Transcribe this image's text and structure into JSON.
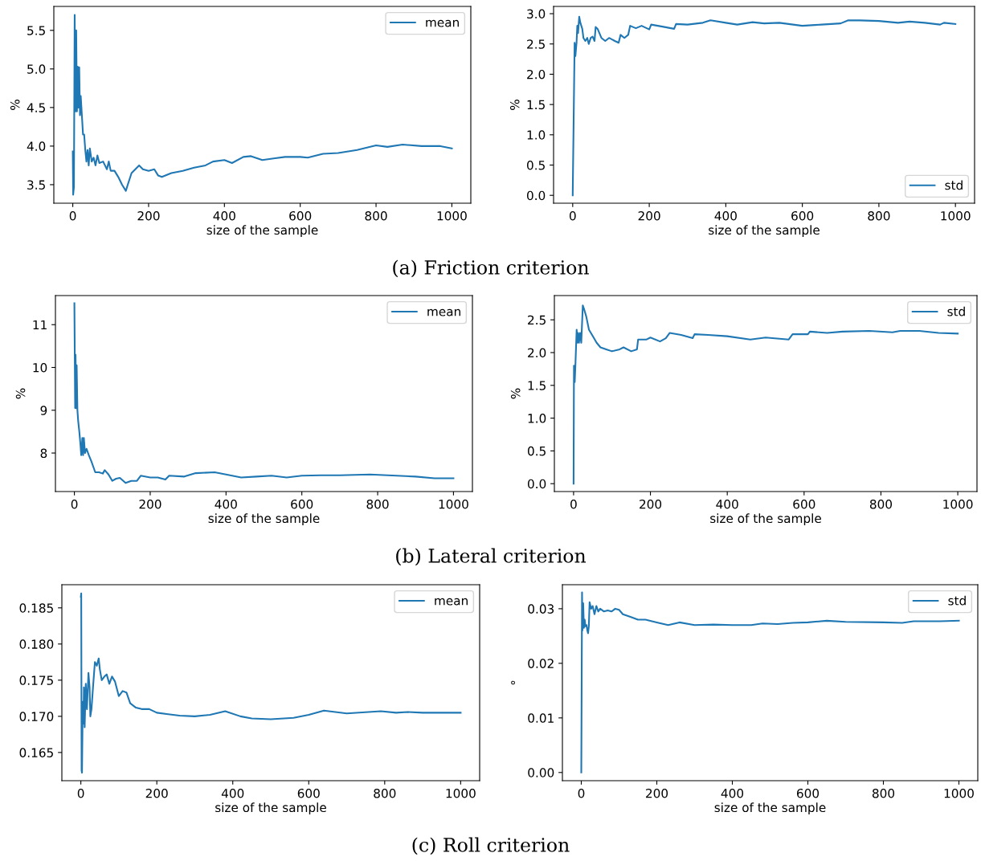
{
  "chart_data": [
    {
      "type": "line",
      "xlabel": "size of the sample",
      "ylabel": "%",
      "xlim": [
        -50,
        1050
      ],
      "xticks": [
        0,
        200,
        400,
        600,
        800,
        1000
      ],
      "ylim": [
        3.26,
        5.81
      ],
      "yticks": [
        3.5,
        {
          "value": 4,
          "label": "4.0"
        },
        4.5,
        {
          "value": 5,
          "label": "5.0"
        },
        5.5
      ],
      "legend": "top right",
      "grid": false,
      "annotations": [
        "(a) Friction criterion"
      ],
      "series": [
        {
          "name": "mean",
          "color": "#1f77b4",
          "x": [
            0,
            1,
            3,
            5,
            7,
            9,
            11,
            13,
            15,
            17,
            19,
            21,
            24,
            27,
            30,
            33,
            36,
            39,
            42,
            45,
            50,
            55,
            60,
            65,
            70,
            80,
            90,
            95,
            100,
            110,
            120,
            130,
            140,
            145,
            155,
            165,
            175,
            185,
            200,
            215,
            225,
            235,
            260,
            290,
            320,
            350,
            370,
            400,
            420,
            450,
            470,
            500,
            530,
            560,
            600,
            620,
            660,
            700,
            750,
            800,
            830,
            870,
            920,
            970,
            1000
          ],
          "values": [
            3.93,
            3.37,
            3.47,
            5.7,
            4.45,
            5.5,
            4.45,
            5.03,
            4.5,
            5.02,
            4.4,
            4.65,
            4.4,
            4.15,
            4.15,
            3.95,
            3.8,
            3.95,
            3.75,
            3.97,
            3.8,
            3.85,
            3.75,
            3.88,
            3.78,
            3.8,
            3.7,
            3.8,
            3.68,
            3.68,
            3.6,
            3.5,
            3.42,
            3.5,
            3.65,
            3.7,
            3.75,
            3.7,
            3.68,
            3.7,
            3.62,
            3.6,
            3.65,
            3.68,
            3.72,
            3.75,
            3.8,
            3.82,
            3.78,
            3.86,
            3.87,
            3.82,
            3.84,
            3.86,
            3.86,
            3.85,
            3.9,
            3.91,
            3.95,
            4.01,
            3.99,
            4.02,
            4.0,
            4.0,
            3.97
          ]
        }
      ]
    },
    {
      "type": "line",
      "xlabel": "size of the sample",
      "ylabel": "%",
      "xlim": [
        -50,
        1050
      ],
      "xticks": [
        0,
        200,
        400,
        600,
        800,
        1000
      ],
      "ylim": [
        -0.13,
        3.12
      ],
      "yticks": [
        {
          "value": 0,
          "label": "0.0"
        },
        0.5,
        {
          "value": 1,
          "label": "1.0"
        },
        1.5,
        {
          "value": 2,
          "label": "2.0"
        },
        2.5,
        {
          "value": 3,
          "label": "3.0"
        }
      ],
      "legend": "bottom right",
      "grid": false,
      "series": [
        {
          "name": "std",
          "color": "#1f77b4",
          "x": [
            0,
            5,
            7,
            10,
            12,
            14,
            17,
            20,
            25,
            28,
            33,
            38,
            42,
            47,
            52,
            57,
            60,
            65,
            75,
            85,
            95,
            110,
            120,
            125,
            135,
            145,
            150,
            165,
            180,
            200,
            205,
            240,
            265,
            270,
            300,
            340,
            360,
            400,
            430,
            470,
            500,
            540,
            600,
            650,
            700,
            720,
            750,
            800,
            850,
            880,
            920,
            960,
            970,
            1000
          ],
          "values": [
            0,
            2.52,
            2.3,
            2.52,
            2.8,
            2.68,
            2.95,
            2.85,
            2.75,
            2.6,
            2.55,
            2.6,
            2.5,
            2.6,
            2.62,
            2.55,
            2.78,
            2.75,
            2.6,
            2.55,
            2.6,
            2.55,
            2.52,
            2.65,
            2.6,
            2.65,
            2.8,
            2.76,
            2.8,
            2.74,
            2.82,
            2.78,
            2.75,
            2.83,
            2.82,
            2.85,
            2.89,
            2.85,
            2.82,
            2.86,
            2.84,
            2.85,
            2.8,
            2.82,
            2.84,
            2.89,
            2.89,
            2.88,
            2.85,
            2.87,
            2.85,
            2.82,
            2.85,
            2.83
          ]
        }
      ]
    },
    {
      "type": "line",
      "xlabel": "size of the sample",
      "ylabel": "%",
      "xlim": [
        -50,
        1050
      ],
      "xticks": [
        0,
        200,
        400,
        600,
        800,
        1000
      ],
      "ylim": [
        7.1,
        11.68
      ],
      "yticks": [
        8,
        9,
        10,
        11
      ],
      "legend": "top right",
      "grid": false,
      "annotations": [
        "(b) Lateral criterion"
      ],
      "series": [
        {
          "name": "mean",
          "color": "#1f77b4",
          "x": [
            0,
            2,
            3,
            5,
            6,
            8,
            10,
            13,
            16,
            18,
            21,
            23,
            25,
            28,
            32,
            38,
            45,
            55,
            65,
            75,
            80,
            90,
            100,
            110,
            120,
            135,
            150,
            165,
            175,
            200,
            220,
            240,
            250,
            290,
            320,
            370,
            400,
            440,
            480,
            520,
            560,
            600,
            650,
            700,
            780,
            850,
            900,
            950,
            1000
          ],
          "values": [
            11.5,
            9.05,
            10.3,
            9.05,
            10.05,
            9.0,
            8.75,
            8.5,
            8.2,
            7.95,
            8.35,
            7.95,
            8.35,
            8.0,
            8.1,
            7.95,
            7.8,
            7.55,
            7.55,
            7.52,
            7.6,
            7.5,
            7.35,
            7.4,
            7.42,
            7.3,
            7.35,
            7.35,
            7.47,
            7.43,
            7.43,
            7.38,
            7.47,
            7.45,
            7.53,
            7.55,
            7.5,
            7.43,
            7.45,
            7.47,
            7.43,
            7.47,
            7.48,
            7.48,
            7.5,
            7.47,
            7.45,
            7.41,
            7.41
          ]
        }
      ]
    },
    {
      "type": "line",
      "xlabel": "size of the sample",
      "ylabel": "%",
      "xlim": [
        -50,
        1050
      ],
      "xticks": [
        0,
        200,
        400,
        600,
        800,
        1000
      ],
      "ylim": [
        -0.12,
        2.87
      ],
      "yticks": [
        {
          "value": 0,
          "label": "0.0"
        },
        0.5,
        {
          "value": 1,
          "label": "1.0"
        },
        1.5,
        {
          "value": 2,
          "label": "2.0"
        },
        2.5
      ],
      "legend": "top right",
      "grid": false,
      "series": [
        {
          "name": "std",
          "color": "#1f77b4",
          "x": [
            0,
            1,
            3,
            5,
            8,
            10,
            12,
            14,
            17,
            20,
            24,
            28,
            33,
            40,
            50,
            60,
            70,
            85,
            100,
            120,
            130,
            150,
            165,
            168,
            190,
            200,
            225,
            240,
            250,
            280,
            310,
            315,
            350,
            400,
            460,
            500,
            560,
            570,
            610,
            615,
            660,
            700,
            770,
            830,
            850,
            900,
            950,
            1000
          ],
          "values": [
            0,
            1.8,
            1.55,
            1.85,
            2.35,
            2.15,
            2.3,
            2.15,
            2.3,
            2.15,
            2.72,
            2.65,
            2.55,
            2.35,
            2.25,
            2.15,
            2.08,
            2.05,
            2.02,
            2.05,
            2.08,
            2.02,
            2.05,
            2.2,
            2.2,
            2.23,
            2.17,
            2.22,
            2.3,
            2.27,
            2.22,
            2.28,
            2.27,
            2.25,
            2.2,
            2.23,
            2.2,
            2.28,
            2.28,
            2.32,
            2.3,
            2.32,
            2.33,
            2.31,
            2.33,
            2.33,
            2.3,
            2.29
          ]
        }
      ]
    },
    {
      "type": "line",
      "xlabel": "size of the sample",
      "xlim": [
        -50,
        1050
      ],
      "xticks": [
        0,
        200,
        400,
        600,
        800,
        1000
      ],
      "ylim": [
        0.1611,
        0.1882
      ],
      "yticks": [
        0.165,
        {
          "value": 0.17,
          "label": "0.170"
        },
        0.175,
        {
          "value": 0.18,
          "label": "0.180"
        },
        0.185
      ],
      "legend": "top right",
      "grid": false,
      "annotations": [
        "(c) Roll criterion"
      ],
      "series": [
        {
          "name": "mean",
          "color": "#1f77b4",
          "x": [
            0,
            1,
            2,
            3,
            5,
            7,
            8,
            10,
            13,
            16,
            18,
            20,
            23,
            25,
            28,
            32,
            37,
            42,
            47,
            50,
            55,
            62,
            68,
            75,
            82,
            90,
            100,
            110,
            120,
            130,
            145,
            160,
            180,
            200,
            230,
            260,
            300,
            340,
            380,
            420,
            450,
            500,
            560,
            600,
            640,
            700,
            790,
            830,
            860,
            900,
            1000
          ],
          "values": [
            0.1865,
            0.187,
            0.1625,
            0.1622,
            0.172,
            0.169,
            0.174,
            0.1685,
            0.1745,
            0.171,
            0.1735,
            0.176,
            0.174,
            0.17,
            0.171,
            0.174,
            0.1775,
            0.177,
            0.178,
            0.1765,
            0.175,
            0.1755,
            0.1758,
            0.1745,
            0.1755,
            0.1748,
            0.1728,
            0.1735,
            0.1733,
            0.1718,
            0.1712,
            0.171,
            0.171,
            0.1705,
            0.1703,
            0.1701,
            0.17,
            0.1702,
            0.1707,
            0.17,
            0.1697,
            0.1696,
            0.1698,
            0.1702,
            0.1708,
            0.1704,
            0.1707,
            0.1705,
            0.1706,
            0.1705,
            0.1705
          ]
        }
      ]
    },
    {
      "type": "line",
      "xlabel": "size of the sample",
      "ylabel": "°",
      "xlim": [
        -50,
        1050
      ],
      "xticks": [
        0,
        200,
        400,
        600,
        800,
        1000
      ],
      "ylim": [
        -0.0015,
        0.0344
      ],
      "yticks": [
        {
          "value": 0,
          "label": "0.00"
        },
        0.01,
        0.02,
        0.03
      ],
      "legend": "top right",
      "grid": false,
      "series": [
        {
          "name": "std",
          "color": "#1f77b4",
          "x": [
            0,
            2,
            3,
            5,
            7,
            9,
            11,
            14,
            16,
            18,
            20,
            22,
            26,
            30,
            35,
            40,
            45,
            50,
            60,
            70,
            80,
            90,
            100,
            110,
            130,
            150,
            170,
            200,
            230,
            260,
            300,
            350,
            400,
            450,
            480,
            520,
            560,
            600,
            650,
            700,
            800,
            850,
            880,
            950,
            1000
          ],
          "values": [
            0,
            0.033,
            0.026,
            0.031,
            0.0265,
            0.028,
            0.0268,
            0.027,
            0.026,
            0.0255,
            0.0268,
            0.0312,
            0.03,
            0.0305,
            0.029,
            0.0305,
            0.0295,
            0.03,
            0.0295,
            0.0297,
            0.0295,
            0.03,
            0.0298,
            0.029,
            0.0285,
            0.028,
            0.028,
            0.0275,
            0.027,
            0.0275,
            0.027,
            0.0271,
            0.027,
            0.027,
            0.0273,
            0.0272,
            0.0274,
            0.0275,
            0.0278,
            0.0276,
            0.0275,
            0.0274,
            0.0277,
            0.0277,
            0.0278
          ]
        }
      ]
    }
  ]
}
